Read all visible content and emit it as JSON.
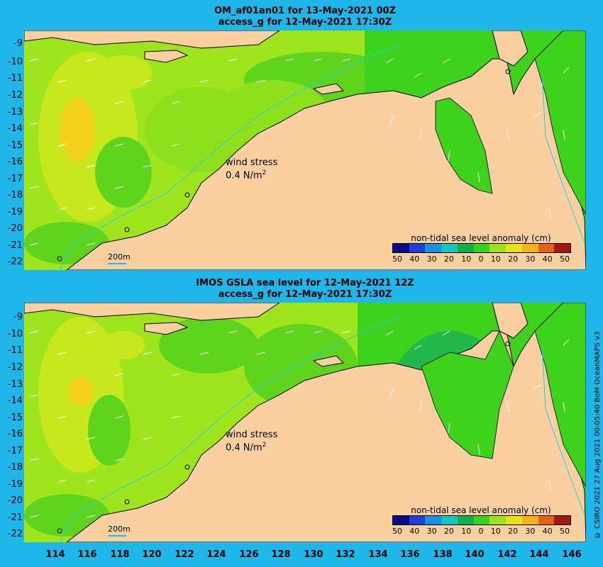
{
  "panels": [
    {
      "title_line1": "OM_af01an01 for 13-May-2021 00Z",
      "title_line2": "access_g for 12-May-2021 17:30Z",
      "wind_label_line1": "wind stress",
      "wind_label_line2": "0.4 N/m",
      "wind_label_sup": "2",
      "legend_title": "non-tidal sea level anomaly (cm)",
      "scale_label": "200m"
    },
    {
      "title_line1": "IMOS GSLA sea level  for 12-May-2021 12Z",
      "title_line2": "access_g for 12-May-2021 17:30Z",
      "wind_label_line1": "wind stress",
      "wind_label_line2": "0.4 N/m",
      "wind_label_sup": "2",
      "legend_title": "non-tidal sea level anomaly (cm)",
      "scale_label": "200m"
    }
  ],
  "lat_labels": [
    "-9",
    "-10",
    "-11",
    "-12",
    "-13",
    "-14",
    "-15",
    "-16",
    "-17",
    "-18",
    "-19",
    "-20",
    "-21",
    "-22"
  ],
  "lon_labels": [
    "114",
    "116",
    "118",
    "120",
    "122",
    "124",
    "126",
    "128",
    "130",
    "132",
    "134",
    "136",
    "138",
    "140",
    "142",
    "144",
    "146"
  ],
  "legend_ticks": [
    "50",
    "40",
    "30",
    "20",
    "10",
    "0",
    "10",
    "20",
    "30",
    "40",
    "50"
  ],
  "legend_colors": [
    "#0a0a8a",
    "#1f3fd6",
    "#1e8fe0",
    "#16c5c0",
    "#13b04a",
    "#37d21a",
    "#9ce21d",
    "#e6e21a",
    "#f2b21a",
    "#e0631a",
    "#a01a0a"
  ],
  "credit": "© CSIRO 2021   27 Aug 2021 00:05:40 BoM OceanMAPS v3",
  "colors": {
    "land": "#fbd0a0",
    "ocean_bg": "#1fb6ea",
    "anomaly_green": "#3ed21c",
    "anomaly_yellowgreen": "#9fe51d"
  }
}
